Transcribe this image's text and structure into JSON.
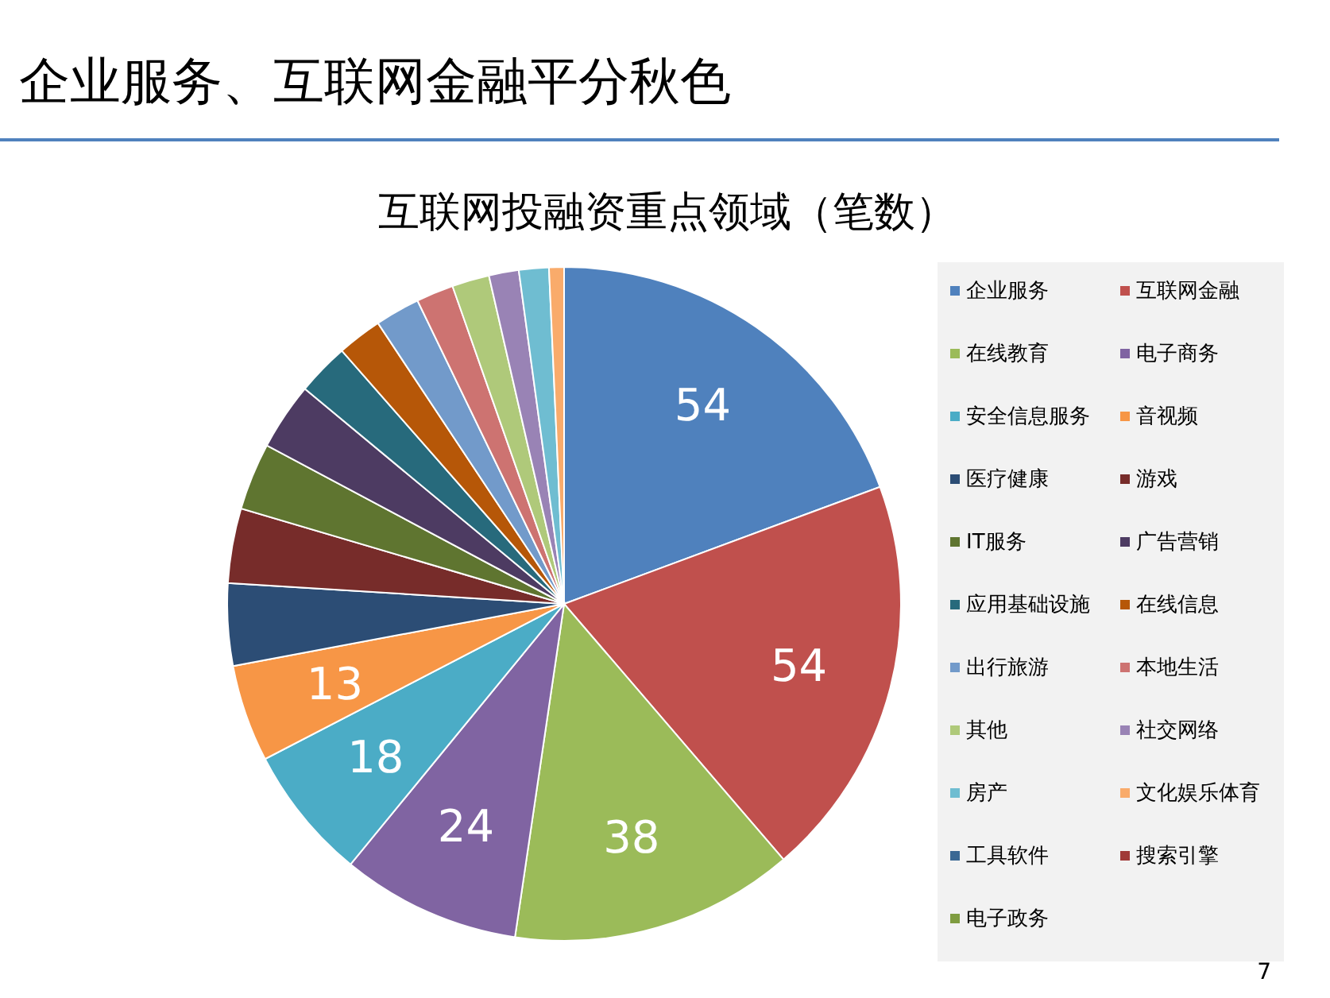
{
  "chart_data": {
    "type": "pie",
    "title": "企业服务、互联网金融平分秋色",
    "subtitle": "互联网投融资重点领域（笔数）",
    "categories": [
      "企业服务",
      "互联网金融",
      "在线教育",
      "电子商务",
      "安全信息服务",
      "音视频",
      "医疗健康",
      "游戏",
      "IT服务",
      "广告营销",
      "应用基础设施",
      "在线信息",
      "出行旅游",
      "本地生活",
      "其他",
      "社交网络",
      "房产",
      "文化娱乐体育",
      "工具软件",
      "搜索引擎",
      "电子政务"
    ],
    "values": [
      54,
      54,
      38,
      24,
      18,
      13,
      11,
      10,
      9,
      9,
      7,
      6,
      6,
      5,
      5,
      4,
      4,
      2,
      0,
      0,
      0
    ],
    "value_labels": [
      "54",
      "54",
      "38",
      "24",
      "18",
      "13",
      null,
      null,
      null,
      null,
      null,
      null,
      null,
      null,
      null,
      null,
      null,
      null,
      null,
      null,
      null
    ],
    "colors": [
      "#4f81bd",
      "#c0504d",
      "#9bbb59",
      "#8064a2",
      "#4bacc6",
      "#f79646",
      "#2c4d75",
      "#772c2a",
      "#5f7530",
      "#4d3b62",
      "#276a7c",
      "#b65708",
      "#729aca",
      "#cd7371",
      "#afc97a",
      "#9983b5",
      "#6fbdd1",
      "#f9ab6b",
      "#3a6894",
      "#a03a38",
      "#7f9c40"
    ],
    "legend": "right",
    "annotations": [
      "7"
    ]
  }
}
